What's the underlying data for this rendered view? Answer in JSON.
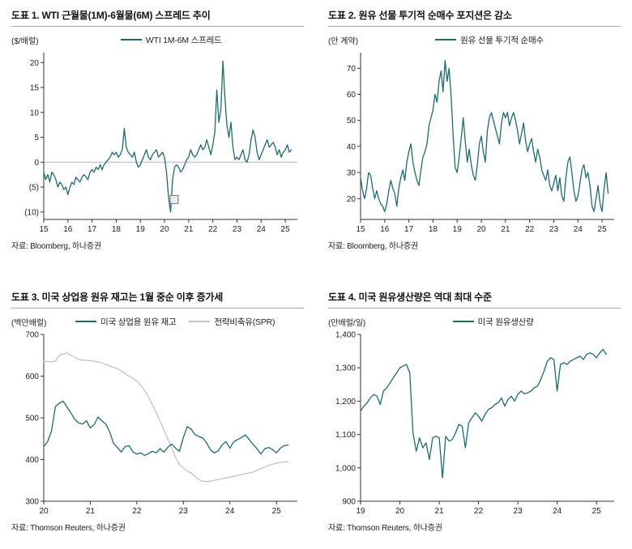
{
  "page": {
    "background": "#ffffff",
    "accent_teal": "#1b6d6d",
    "spr_gray": "#c4c4c4"
  },
  "chart_data": [
    {
      "type": "line",
      "title": "도표 1. WTI 근월물(1M)-6월물(6M) 스프레드 추이",
      "unit_label": "($/배럴)",
      "source": "자료: Bloomberg, 하나증권",
      "legend": [
        {
          "label": "WTI 1M-6M 스프레드",
          "color": "#1b6d6d"
        }
      ],
      "xlim": [
        2015,
        2025.5
      ],
      "ylim": [
        -11.5,
        22
      ],
      "yticks": [
        20,
        15,
        10,
        5,
        0,
        -5,
        -10
      ],
      "ytick_labels": [
        "20",
        "15",
        "10",
        "5",
        "0",
        "(5)",
        "(10)"
      ],
      "xticks": [
        2015,
        2016,
        2017,
        2018,
        2019,
        2020,
        2021,
        2022,
        2023,
        2024,
        2025
      ],
      "xtick_labels": [
        "15",
        "16",
        "17",
        "18",
        "19",
        "20",
        "21",
        "22",
        "23",
        "24",
        "25"
      ],
      "zero_line": true,
      "annotation_box": {
        "x": 2020.4,
        "y": -7.5
      },
      "series": [
        {
          "name": "WTI 1M-6M 스프레드",
          "color": "#1b6d6d",
          "x_start": 2015.0,
          "x_step": 0.08333,
          "values": [
            -2.0,
            -3.5,
            -2.5,
            -4.0,
            -2.0,
            -2.5,
            -3.5,
            -5.0,
            -4.0,
            -4.5,
            -5.5,
            -5.0,
            -6.5,
            -5.0,
            -4.0,
            -4.5,
            -3.0,
            -3.5,
            -4.0,
            -3.0,
            -2.5,
            -3.0,
            -3.5,
            -2.0,
            -1.5,
            -2.0,
            -1.0,
            -1.5,
            -0.5,
            -1.5,
            -0.5,
            0.0,
            0.5,
            1.0,
            2.0,
            1.5,
            2.0,
            1.0,
            1.5,
            2.5,
            6.8,
            3.0,
            2.0,
            1.5,
            1.0,
            2.0,
            0.0,
            -1.0,
            -0.5,
            0.5,
            1.5,
            2.5,
            1.0,
            0.5,
            1.5,
            2.0,
            2.5,
            1.0,
            1.5,
            2.0,
            1.0,
            -2.0,
            -7.0,
            -10.0,
            -3.5,
            -1.0,
            -0.5,
            -1.0,
            -2.0,
            -1.5,
            -0.5,
            0.5,
            1.0,
            2.5,
            1.5,
            1.0,
            1.5,
            2.5,
            3.5,
            2.5,
            3.0,
            4.5,
            3.0,
            1.5,
            3.5,
            6.0,
            14.5,
            8.0,
            10.5,
            20.3,
            13.0,
            7.5,
            5.0,
            8.0,
            3.0,
            0.5,
            1.0,
            0.5,
            1.5,
            2.5,
            0.5,
            0.0,
            1.5,
            4.5,
            6.5,
            5.0,
            2.0,
            0.5,
            1.5,
            2.5,
            3.5,
            4.5,
            3.0,
            3.5,
            4.0,
            3.0,
            1.5,
            2.5,
            1.0,
            2.0,
            2.5,
            3.5,
            2.0,
            2.5
          ]
        }
      ]
    },
    {
      "type": "line",
      "title": "도표 2. 원유 선물 투기적 순매수 포지션은 감소",
      "unit_label": "(만 계약)",
      "source": "자료: Bloomberg, 하나증권",
      "legend": [
        {
          "label": "원유 선물 투기적 순매수",
          "color": "#1b6d6d"
        }
      ],
      "xlim": [
        2015,
        2025.5
      ],
      "ylim": [
        12,
        76
      ],
      "yticks": [
        70,
        60,
        50,
        40,
        30,
        20
      ],
      "ytick_labels": [
        "70",
        "60",
        "50",
        "40",
        "30",
        "20"
      ],
      "xticks": [
        2015,
        2016,
        2017,
        2018,
        2019,
        2020,
        2021,
        2022,
        2023,
        2024,
        2025
      ],
      "xtick_labels": [
        "15",
        "16",
        "17",
        "18",
        "19",
        "20",
        "21",
        "22",
        "23",
        "24",
        "25"
      ],
      "zero_line": false,
      "series": [
        {
          "name": "원유 선물 투기적 순매수",
          "color": "#1b6d6d",
          "x_start": 2015.0,
          "x_step": 0.08333,
          "values": [
            28,
            23,
            20,
            24,
            30,
            29,
            24,
            20,
            23,
            20,
            18,
            17,
            15,
            18,
            23,
            27,
            24,
            22,
            17,
            24,
            28,
            31,
            27,
            34,
            38,
            41,
            34,
            30,
            27,
            25,
            31,
            36,
            38,
            41,
            48,
            51,
            54,
            60,
            57,
            65,
            69,
            61,
            73,
            65,
            70,
            59,
            44,
            32,
            30,
            36,
            43,
            51,
            42,
            34,
            39,
            33,
            29,
            27,
            33,
            41,
            44,
            38,
            34,
            46,
            51,
            53,
            50,
            47,
            44,
            41,
            49,
            53,
            51,
            53,
            48,
            51,
            53,
            50,
            46,
            41,
            45,
            49,
            42,
            38,
            41,
            43,
            38,
            34,
            39,
            36,
            31,
            29,
            27,
            31,
            25,
            23,
            26,
            29,
            23,
            28,
            21,
            19,
            28,
            34,
            36,
            30,
            23,
            19,
            21,
            26,
            31,
            33,
            28,
            30,
            25,
            17,
            15,
            20,
            25,
            18,
            15,
            24,
            30,
            22
          ]
        }
      ]
    },
    {
      "type": "line",
      "title": "도표 3. 미국 상업용 원유 재고는 1월 중순 이후 증가세",
      "unit_label": "(백만배럴)",
      "source": "자료: Thomson Reuters, 하나증권",
      "legend": [
        {
          "label": "미국 상업용 원유 재고",
          "color": "#1b6d6d"
        },
        {
          "label": "전략비축유(SPR)",
          "color": "#c4c4c4"
        }
      ],
      "xlim": [
        2020,
        2025.45
      ],
      "ylim": [
        300,
        700
      ],
      "yticks": [
        700,
        600,
        500,
        400,
        300
      ],
      "ytick_labels": [
        "700",
        "600",
        "500",
        "400",
        "300"
      ],
      "xticks": [
        2020,
        2021,
        2022,
        2023,
        2024,
        2025
      ],
      "xtick_labels": [
        "20",
        "21",
        "22",
        "23",
        "24",
        "25"
      ],
      "zero_line": false,
      "series": [
        {
          "name": "전략비축유(SPR)",
          "color": "#c4c4c4",
          "x_start": 2020.0,
          "x_step": 0.08333,
          "values": [
            635,
            635,
            634,
            636,
            650,
            653,
            656,
            650,
            646,
            640,
            638,
            638,
            637,
            636,
            634,
            632,
            628,
            624,
            621,
            618,
            612,
            606,
            600,
            594,
            588,
            578,
            566,
            550,
            532,
            512,
            492,
            470,
            450,
            428,
            405,
            388,
            380,
            372,
            368,
            360,
            352,
            348,
            347,
            348,
            350,
            352,
            354,
            356,
            358,
            360,
            362,
            364,
            366,
            368,
            370,
            374,
            378,
            382,
            386,
            389,
            391,
            393,
            394,
            395
          ]
        },
        {
          "name": "미국 상업용 원유 재고",
          "color": "#1b6d6d",
          "x_start": 2020.0,
          "x_step": 0.08333,
          "values": [
            431,
            443,
            469,
            527,
            535,
            540,
            526,
            512,
            496,
            488,
            485,
            493,
            476,
            484,
            502,
            493,
            485,
            466,
            439,
            429,
            418,
            431,
            433,
            418,
            413,
            416,
            410,
            414,
            420,
            416,
            426,
            418,
            429,
            437,
            427,
            420,
            453,
            479,
            473,
            460,
            455,
            452,
            440,
            423,
            416,
            421,
            435,
            443,
            427,
            443,
            448,
            453,
            459,
            448,
            436,
            426,
            413,
            426,
            429,
            424,
            416,
            427,
            433,
            435
          ]
        }
      ]
    },
    {
      "type": "line",
      "title": "도표 4. 미국 원유생산량은 역대 최대 수준",
      "unit_label": "(만배럴/일)",
      "source": "자료: Thomson Reuters, 하나증권",
      "legend": [
        {
          "label": "미국 원유생산량",
          "color": "#1b6d6d"
        }
      ],
      "xlim": [
        2019,
        2025.45
      ],
      "ylim": [
        900,
        1400
      ],
      "yticks": [
        1400,
        1300,
        1200,
        1100,
        1000,
        900
      ],
      "ytick_labels": [
        "1,400",
        "1,300",
        "1,200",
        "1,100",
        "1,000",
        "900"
      ],
      "xticks": [
        2019,
        2020,
        2021,
        2022,
        2023,
        2024,
        2025
      ],
      "xtick_labels": [
        "19",
        "20",
        "21",
        "22",
        "23",
        "24",
        "25"
      ],
      "zero_line": false,
      "series": [
        {
          "name": "미국 원유생산량",
          "color": "#1b6d6d",
          "x_start": 2019.0,
          "x_step": 0.08333,
          "values": [
            1170,
            1185,
            1195,
            1210,
            1220,
            1215,
            1190,
            1230,
            1240,
            1255,
            1270,
            1285,
            1300,
            1305,
            1310,
            1285,
            1105,
            1050,
            1090,
            1060,
            1075,
            1025,
            1090,
            1095,
            1090,
            970,
            1095,
            1080,
            1085,
            1105,
            1130,
            1125,
            1060,
            1135,
            1150,
            1165,
            1155,
            1140,
            1160,
            1175,
            1180,
            1190,
            1195,
            1210,
            1185,
            1205,
            1215,
            1200,
            1220,
            1230,
            1222,
            1225,
            1230,
            1240,
            1245,
            1265,
            1290,
            1320,
            1330,
            1325,
            1230,
            1310,
            1315,
            1310,
            1320,
            1325,
            1330,
            1335,
            1325,
            1340,
            1345,
            1340,
            1330,
            1345,
            1355,
            1340
          ]
        }
      ]
    }
  ]
}
